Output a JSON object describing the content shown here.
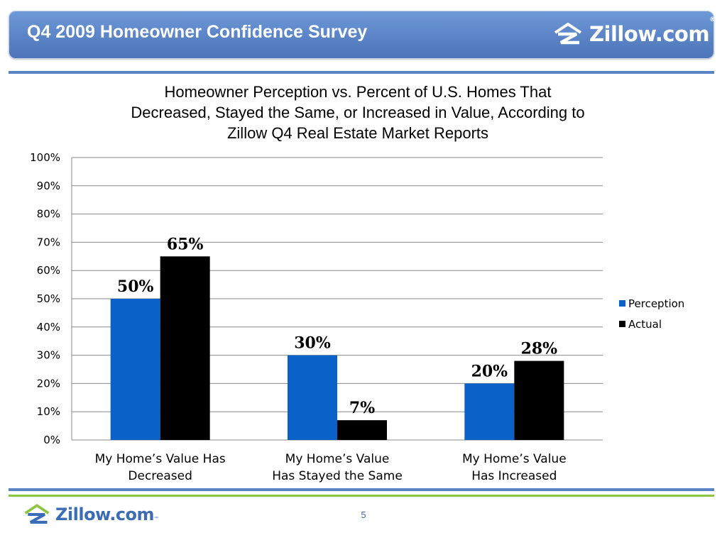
{
  "header": {
    "title": "Q4 2009 Homeowner Confidence Survey",
    "logo_text": "Zillow.com",
    "logo_mark": "®",
    "logo_icon": "zillow-house-z-icon"
  },
  "footer": {
    "logo_text": "Zillow.com",
    "logo_mark": "™",
    "logo_icon": "zillow-house-z-icon",
    "page_number": "5"
  },
  "colors": {
    "header_bg": "#5a84c6",
    "perception": "#0a62c8",
    "actual": "#000000",
    "rule_blue": "#5b83c4",
    "rule_green": "#8cc63f"
  },
  "chart_data": {
    "type": "bar",
    "title_lines": [
      "Homeowner Perception vs. Percent of U.S. Homes That",
      "Decreased, Stayed the Same, or Increased in Value, According to",
      "Zillow Q4 Real Estate Market Reports"
    ],
    "categories": [
      [
        "My Home’s Value Has",
        "Decreased"
      ],
      [
        "My Home’s Value",
        "Has Stayed the Same"
      ],
      [
        "My Home’s Value",
        "Has Increased"
      ]
    ],
    "series": [
      {
        "name": "Perception",
        "values": [
          50,
          30,
          20
        ],
        "labels": [
          "50%",
          "30%",
          "20%"
        ],
        "color": "#0a62c8"
      },
      {
        "name": "Actual",
        "values": [
          65,
          7,
          28
        ],
        "labels": [
          "65%",
          "7%",
          "28%"
        ],
        "color": "#000000"
      }
    ],
    "ylim": [
      0,
      100
    ],
    "yticks": [
      "0%",
      "10%",
      "20%",
      "30%",
      "40%",
      "50%",
      "60%",
      "70%",
      "80%",
      "90%",
      "100%"
    ],
    "grid": true,
    "legend_position": "right"
  }
}
